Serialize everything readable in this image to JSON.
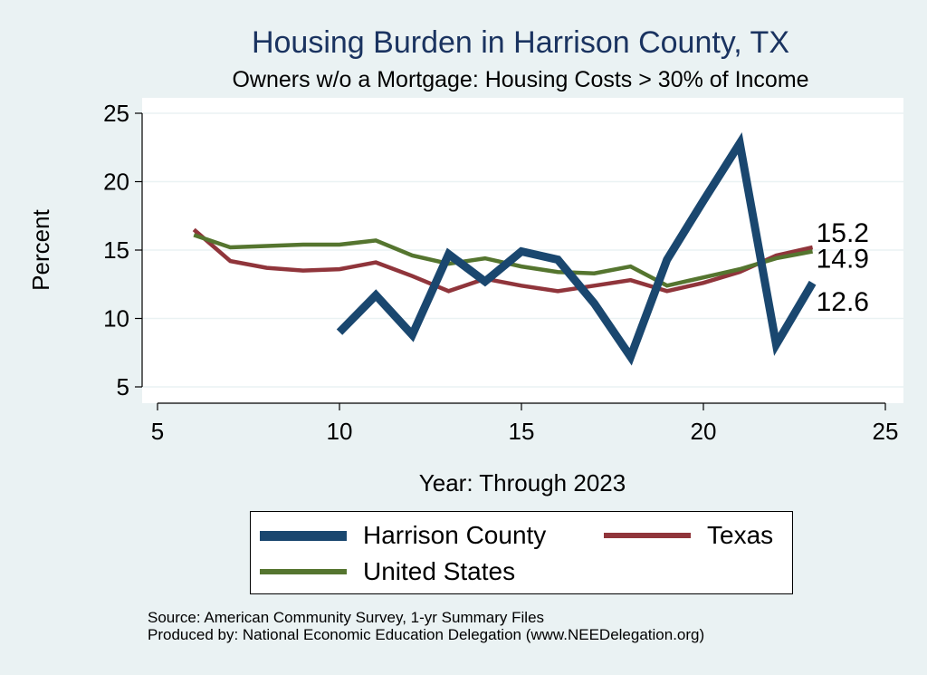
{
  "chart_data": {
    "type": "line",
    "title": "Housing Burden in Harrison County, TX",
    "subtitle": "Owners w/o a Mortgage: Housing Costs > 30% of Income",
    "xlabel": "Year: Through 2023",
    "ylabel": "Percent",
    "xlim": [
      5,
      25
    ],
    "ylim": [
      5,
      25
    ],
    "xticks": [
      5,
      10,
      15,
      20,
      25
    ],
    "yticks": [
      5,
      10,
      15,
      20,
      25
    ],
    "grid": true,
    "legend_position": "bottom",
    "series": [
      {
        "name": "Harrison County",
        "color": "#1a476f",
        "x": [
          10,
          11,
          12,
          13,
          14,
          15,
          16,
          17,
          18,
          19,
          20,
          21,
          22,
          23
        ],
        "y": [
          9.0,
          11.7,
          8.8,
          14.7,
          12.7,
          14.9,
          14.3,
          11.1,
          7.2,
          14.3,
          18.6,
          22.8,
          8.1,
          12.6
        ],
        "end_label": "12.6"
      },
      {
        "name": "Texas",
        "color": "#90353b",
        "x": [
          6,
          7,
          8,
          9,
          10,
          11,
          12,
          13,
          14,
          15,
          16,
          17,
          18,
          19,
          20,
          21,
          22,
          23
        ],
        "y": [
          16.5,
          14.2,
          13.7,
          13.5,
          13.6,
          14.1,
          13.1,
          12.0,
          12.9,
          12.4,
          12.0,
          12.4,
          12.8,
          12.0,
          12.6,
          13.4,
          14.6,
          15.2
        ],
        "end_label": "15.2"
      },
      {
        "name": "United States",
        "color": "#55752f",
        "x": [
          6,
          7,
          8,
          9,
          10,
          11,
          12,
          13,
          14,
          15,
          16,
          17,
          18,
          19,
          20,
          21,
          22,
          23
        ],
        "y": [
          16.1,
          15.2,
          15.3,
          15.4,
          15.4,
          15.7,
          14.6,
          14.0,
          14.4,
          13.8,
          13.4,
          13.3,
          13.8,
          12.4,
          13.0,
          13.6,
          14.4,
          14.9
        ],
        "end_label": "14.9"
      }
    ]
  },
  "legend": {
    "items": [
      "Harrison County",
      "Texas",
      "United States"
    ]
  },
  "notes": {
    "source": "Source: American Community Survey, 1-yr Summary Files",
    "produced": "Produced by: National Economic Education Delegation (www.NEEDelegation.org)"
  }
}
